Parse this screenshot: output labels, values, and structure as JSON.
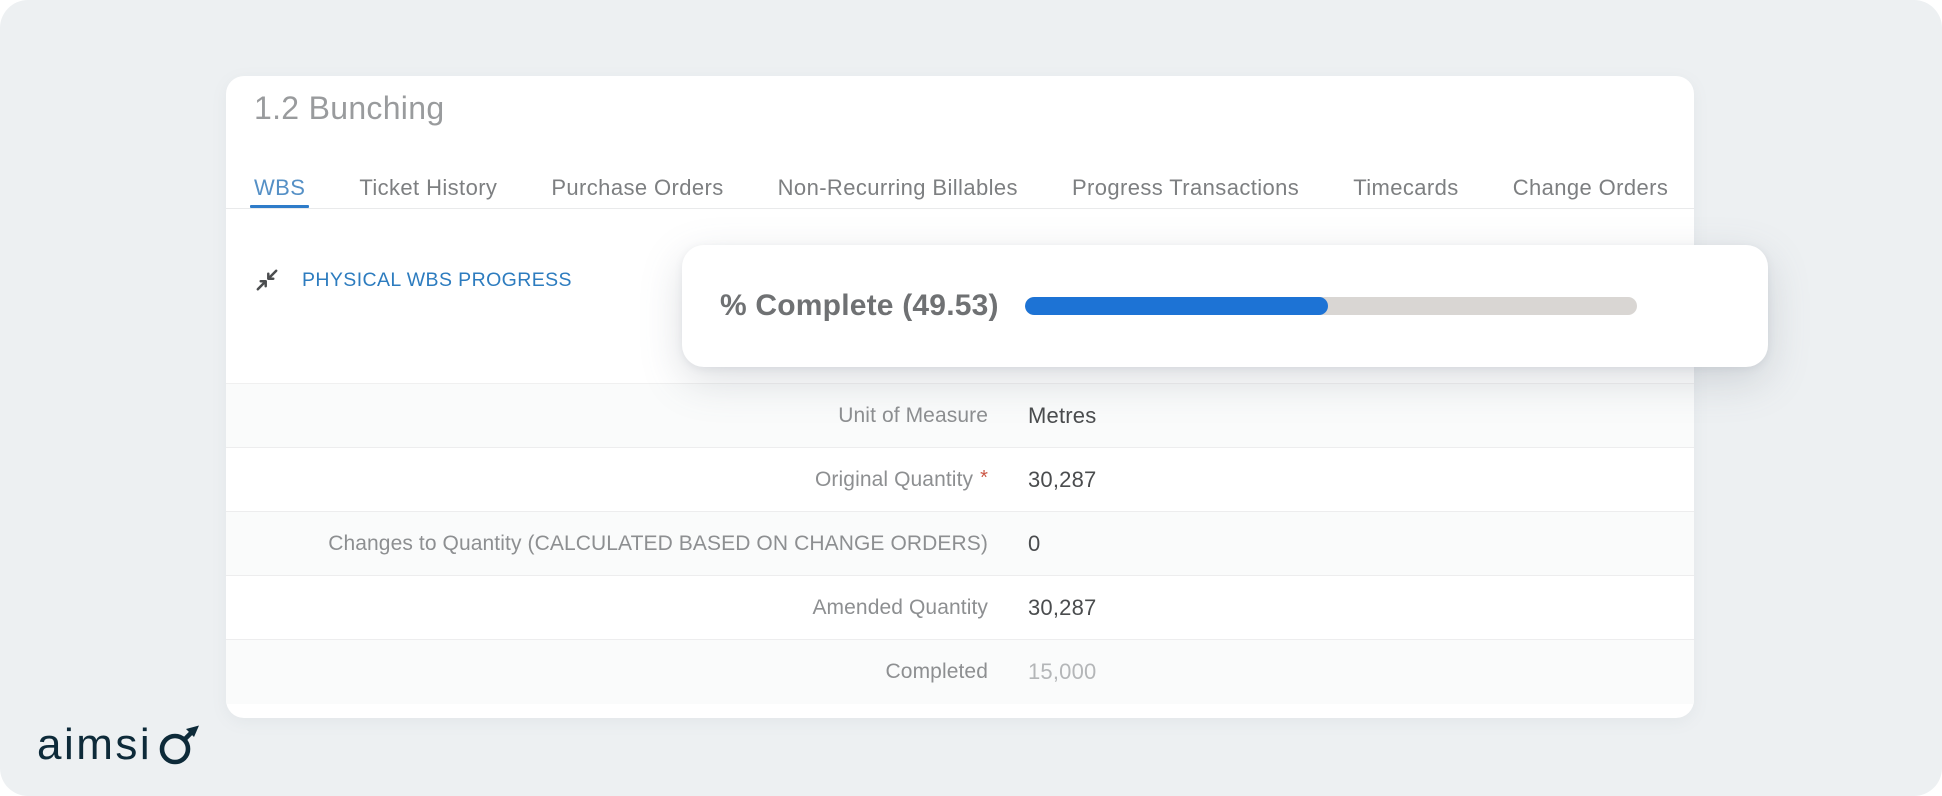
{
  "colors": {
    "page_bg": "#edf0f2",
    "accent_blue": "#2e7cc9",
    "tab_active": "#5590c6",
    "section_title": "#2d7cbf",
    "progress_fill": "#1d73d5",
    "progress_track": "#d9d6d3",
    "required_red": "#cb5745",
    "logo_navy": "#0d2a39"
  },
  "window": {
    "title": "1.2 Bunching"
  },
  "tabs": {
    "items": [
      {
        "label": "WBS",
        "active": true
      },
      {
        "label": "Ticket History"
      },
      {
        "label": "Purchase Orders"
      },
      {
        "label": "Non-Recurring Billables"
      },
      {
        "label": "Progress Transactions"
      },
      {
        "label": "Timecards"
      },
      {
        "label": "Change Orders"
      }
    ]
  },
  "section": {
    "title": "PHYSICAL WBS PROGRESS",
    "icon": "collapse-icon"
  },
  "progress": {
    "label": "% Complete (49.53)",
    "percent": 49.53
  },
  "form": {
    "required_marker": "*",
    "rows": [
      {
        "label": "Unit of Measure",
        "value": "Metres"
      },
      {
        "label": "Original Quantity",
        "value": "30,287",
        "required": true
      },
      {
        "label": "Changes to Quantity (CALCULATED BASED ON CHANGE ORDERS)",
        "value": "0"
      },
      {
        "label": "Amended Quantity",
        "value": "30,287"
      },
      {
        "label": "Completed",
        "value": "15,000",
        "muted": true
      }
    ]
  },
  "logo": {
    "text": "aimsi",
    "mark": "o-arrow"
  }
}
